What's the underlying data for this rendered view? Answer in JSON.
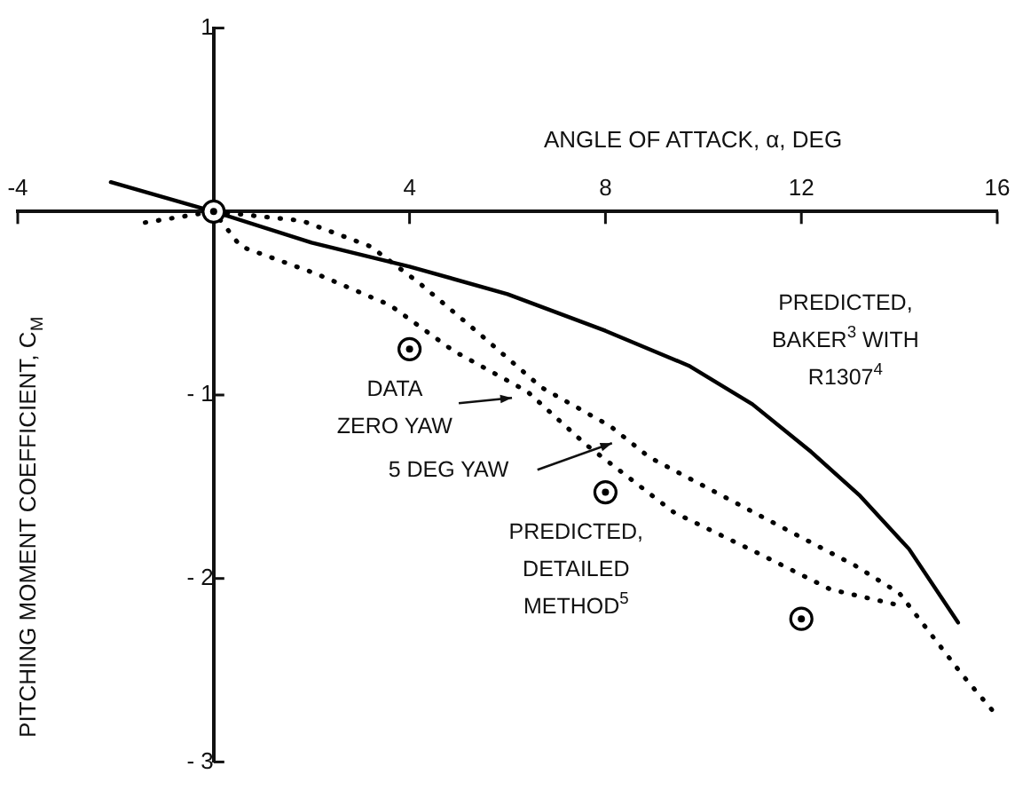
{
  "chart_data": {
    "type": "line",
    "xlabel": "ANGLE OF ATTACK, α, DEG",
    "ylabel": "PITCHING MOMENT COEFFICIENT, C$_{M}$",
    "xlim": [
      -4,
      16
    ],
    "ylim": [
      -3,
      1
    ],
    "xticks": [
      -4,
      4,
      8,
      12,
      16
    ],
    "yticks": [
      {
        "value": -3,
        "label": "- 3"
      },
      {
        "value": -2,
        "label": "- 2"
      },
      {
        "value": -1,
        "label": "- 1"
      },
      1
    ],
    "grid": false,
    "legend": false,
    "series": [
      {
        "color": "#000000",
        "line_style": "solid",
        "marker": "none",
        "x": [
          -2.1,
          0,
          2,
          4,
          6,
          8,
          9.7,
          11,
          12.2,
          13.2,
          14.2,
          15.2
        ],
        "values": [
          0.16,
          0,
          -0.17,
          -0.3,
          -0.45,
          -0.65,
          -0.84,
          -1.05,
          -1.31,
          -1.55,
          -1.84,
          -2.24
        ]
      },
      {
        "color": "#000000",
        "line_style": "dotted",
        "marker": "none",
        "x": [
          -1.4,
          0,
          0.55,
          2.1,
          3.6,
          4.9,
          6.4,
          7.6,
          9.4,
          11.1,
          12.6,
          13.9
        ],
        "values": [
          -0.06,
          0,
          -0.19,
          -0.34,
          -0.51,
          -0.76,
          -0.98,
          -1.27,
          -1.64,
          -1.86,
          -2.06,
          -2.14
        ]
      },
      {
        "color": "#000000",
        "line_style": "dotted",
        "marker": "none",
        "x": [
          0,
          1.8,
          3.2,
          4.2,
          5.4,
          6.7,
          8.1,
          8.9,
          11.1,
          13.1,
          14,
          15.3,
          16
        ],
        "values": [
          0,
          -0.05,
          -0.19,
          -0.39,
          -0.66,
          -0.96,
          -1.17,
          -1.34,
          -1.65,
          -1.93,
          -2.08,
          -2.53,
          -2.75
        ]
      },
      {
        "type": "scatter",
        "color": "#000000",
        "marker": "circle",
        "x": [
          0,
          4,
          8,
          12
        ],
        "values": [
          0,
          -0.75,
          -1.53,
          -2.22
        ]
      }
    ],
    "annotations": [
      "PREDICTED,\nBAKER$^{3}$ WITH\nR1307$^{4}$",
      "DATA\nZERO YAW",
      "5 DEG YAW",
      "PREDICTED,\nDETAILED\nMETHOD$^{5}$"
    ]
  }
}
